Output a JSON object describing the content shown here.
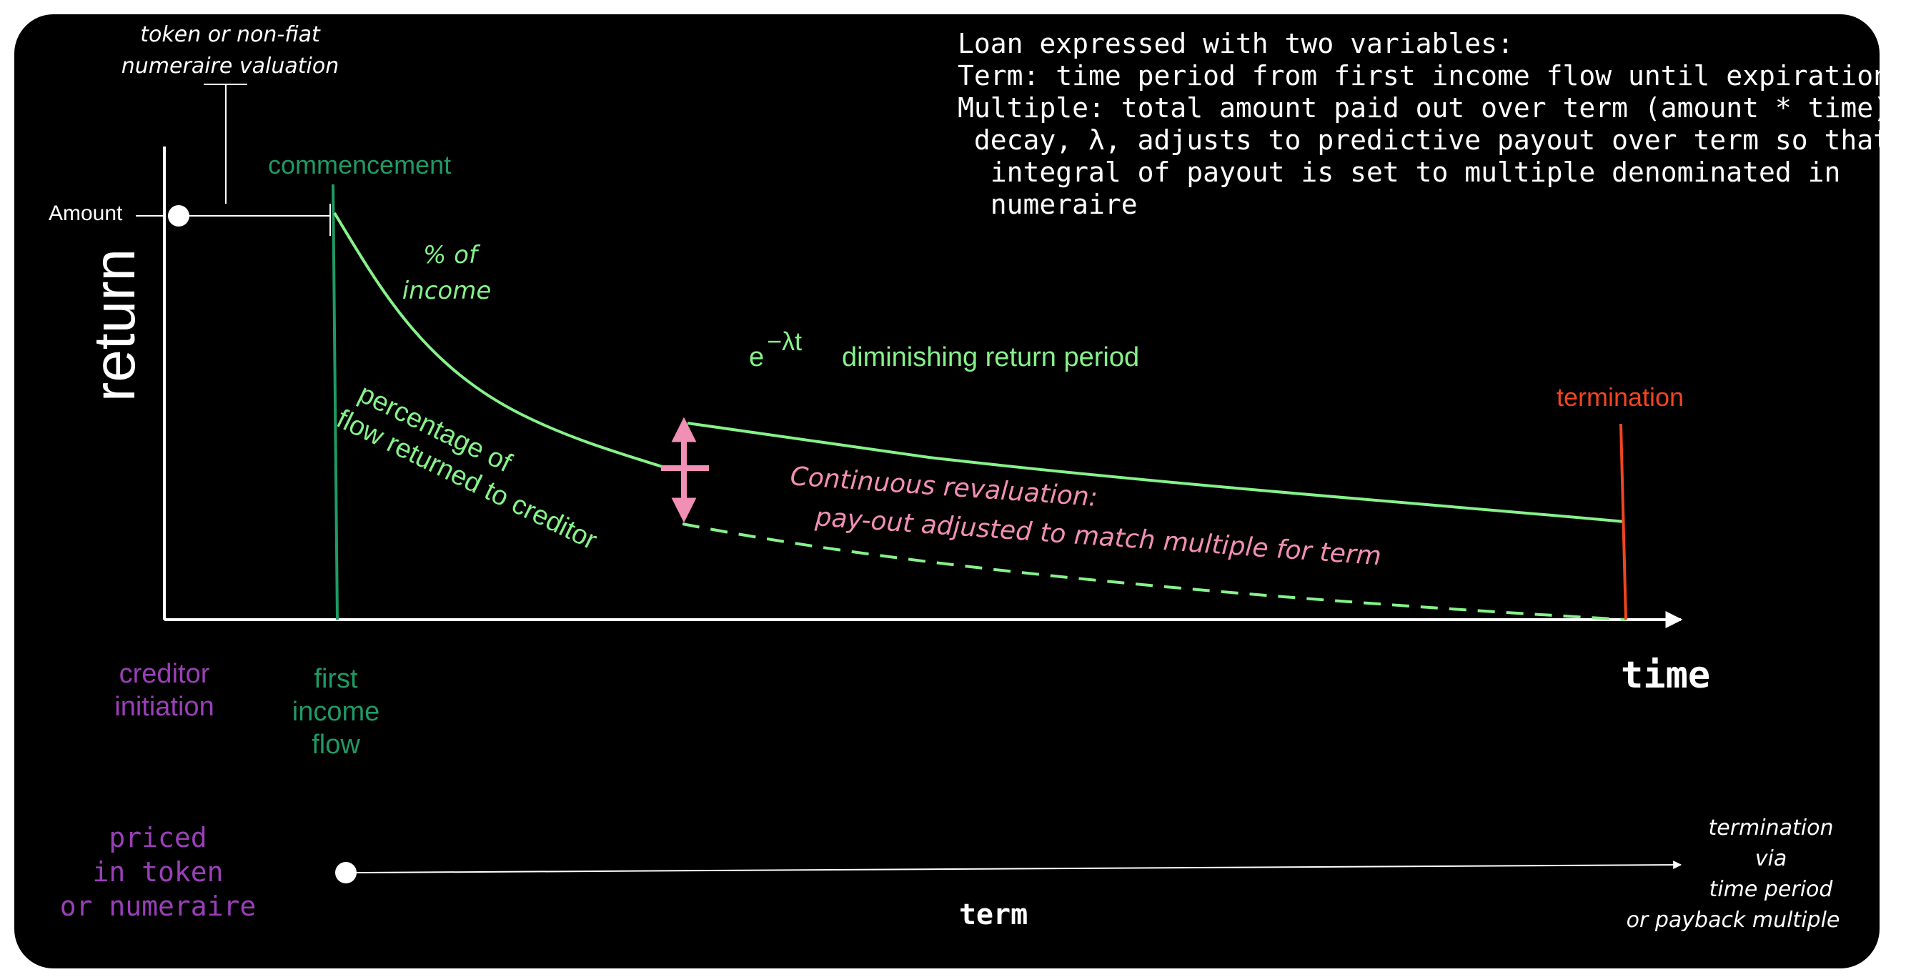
{
  "colors": {
    "background": "#000000",
    "axis": "#ffffff",
    "curve": "#86f28a",
    "commencement": "#1f9a64",
    "termination": "#f0451f",
    "revaluation": "#f28fb4",
    "priced": "#9a3fb8"
  },
  "header": {
    "lines": [
      "Loan expressed with two variables:",
      "Term: time period from first income flow until expiration",
      "Multiple: total amount paid out over term (amount * time)",
      " decay, λ, adjusts to predictive payout over term so that",
      "  integral of payout is set to multiple denominated in",
      "  numeraire"
    ]
  },
  "valuation_note": [
    "token or non-fiat",
    "numeraire valuation"
  ],
  "amount_label": "Amount",
  "commencement_label": "commencement",
  "y_axis_label": "return",
  "x_axis_label": "time",
  "percent_income": [
    "% of",
    "income"
  ],
  "formula": {
    "base": "e",
    "exponent": "−λt"
  },
  "diminishing_label": "diminishing return period",
  "percentage_flow": [
    "percentage of",
    "flow returned to creditor"
  ],
  "termination_label": "termination",
  "revaluation": [
    "Continuous revaluation:",
    "pay-out adjusted to match multiple for term"
  ],
  "creditor_initiation": [
    "creditor",
    "initiation"
  ],
  "first_income_flow": [
    "first",
    "income",
    "flow"
  ],
  "priced": [
    "priced",
    "in token",
    "or numeraire"
  ],
  "term_label": "term",
  "termination_via": [
    "termination",
    "via",
    "time period",
    "or payback multiple"
  ]
}
